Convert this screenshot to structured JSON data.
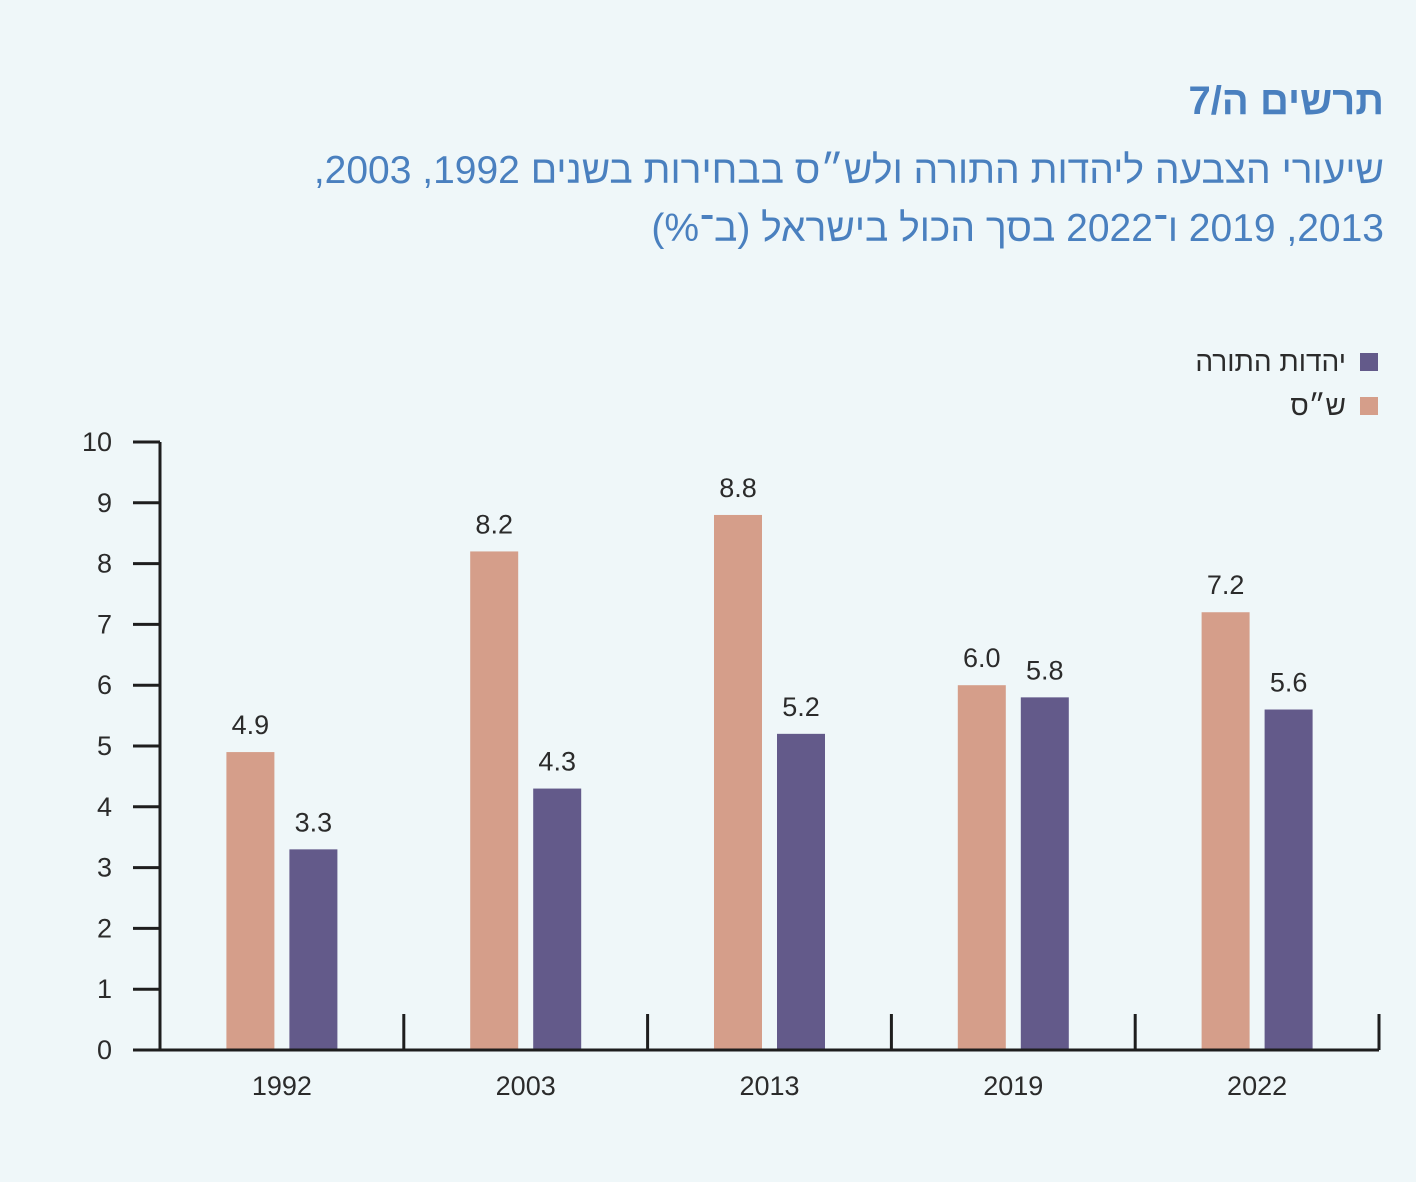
{
  "header": {
    "figure_label": "תרשים ה/7",
    "title_line1": "שיעורי הצבעה ליהדות התורה ולש״ס בבחירות בשנים 1992, 2003,",
    "title_line2": "2013, 2019 ו־2022 בסך הכול בישראל (ב־%)"
  },
  "legend": {
    "items": [
      {
        "label": "יהדות התורה",
        "color": "#635a8a"
      },
      {
        "label": "ש״ס",
        "color": "#d59e8a"
      }
    ]
  },
  "chart_data": {
    "type": "bar",
    "categories": [
      "1992",
      "2003",
      "2013",
      "2019",
      "2022"
    ],
    "series": [
      {
        "name": "ש״ס",
        "color": "#d59e8a",
        "values": [
          4.9,
          8.2,
          8.8,
          6.0,
          7.2
        ],
        "value_labels": [
          "4.9",
          "8.2",
          "8.8",
          "6.0",
          "7.2"
        ]
      },
      {
        "name": "יהדות התורה",
        "color": "#635a8a",
        "values": [
          3.3,
          4.3,
          5.2,
          5.8,
          5.6
        ],
        "value_labels": [
          "3.3",
          "4.3",
          "5.2",
          "5.8",
          "5.6"
        ]
      }
    ],
    "ylim": [
      0,
      10
    ],
    "yticks": [
      0,
      1,
      2,
      3,
      4,
      5,
      6,
      7,
      8,
      9,
      10
    ],
    "xlabel": "",
    "ylabel": "",
    "grid": false,
    "legend_position": "top-right"
  }
}
